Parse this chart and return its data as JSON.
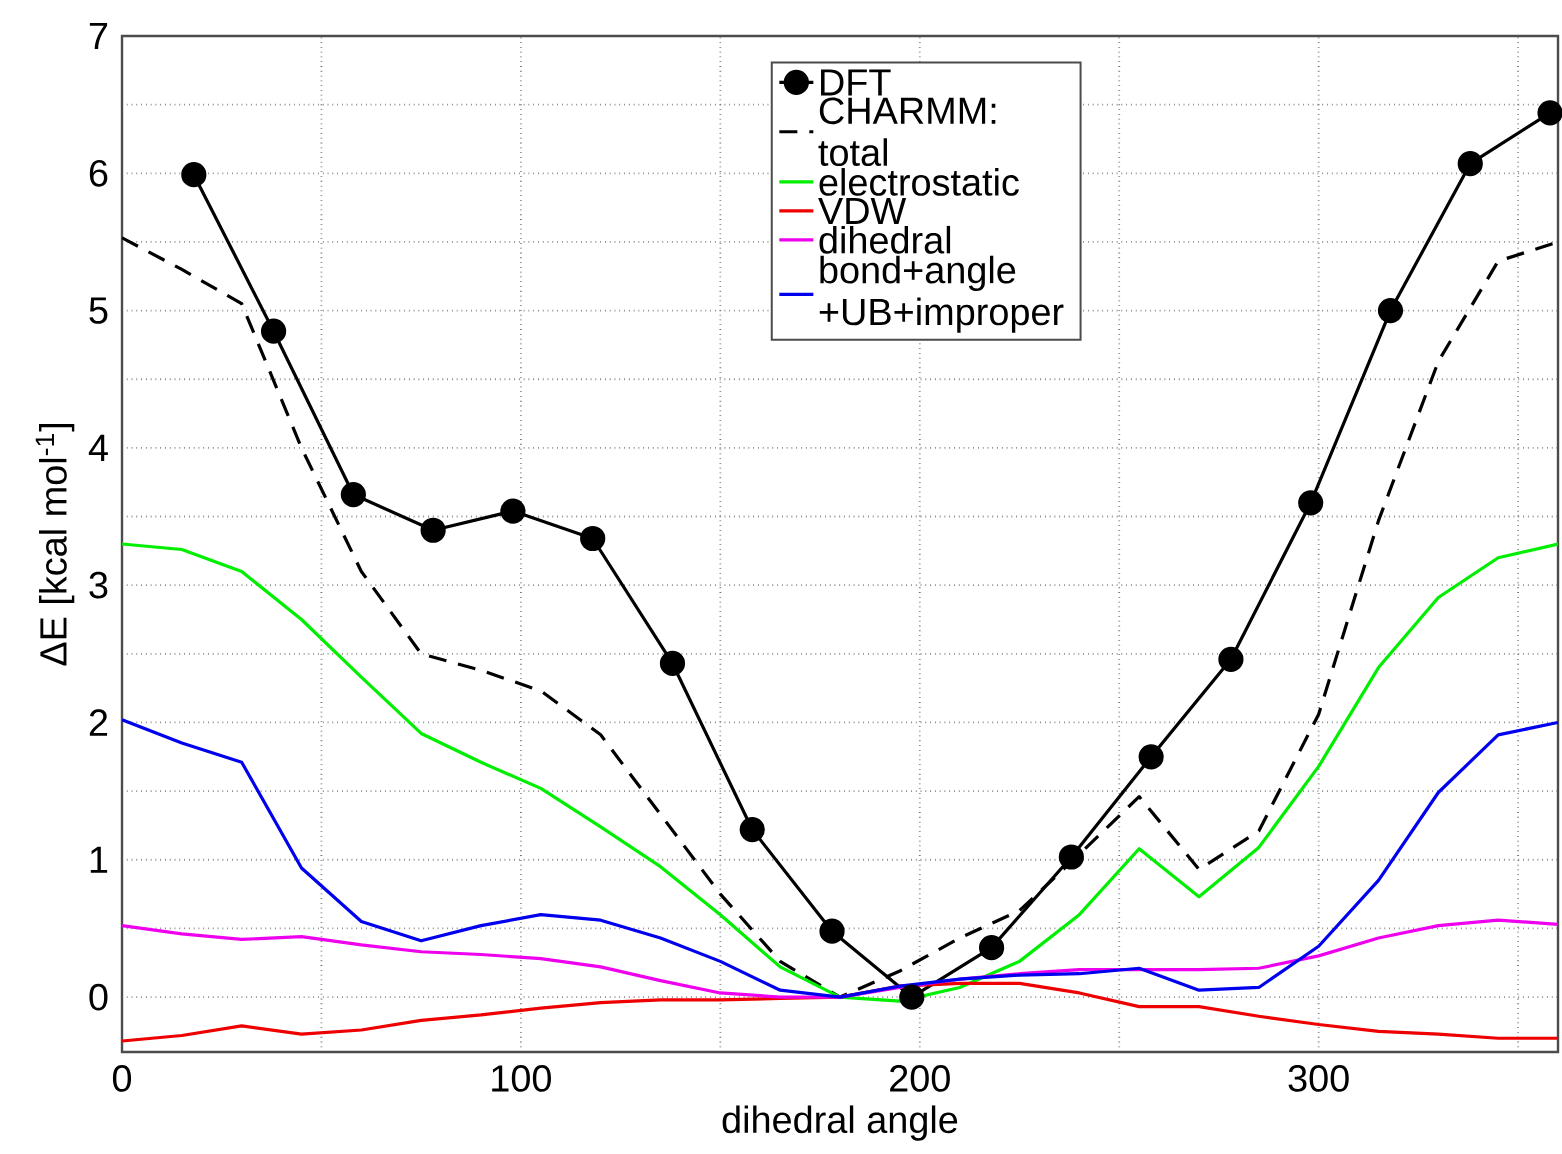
{
  "chart_data": {
    "type": "line",
    "xlabel": "dihedral angle",
    "ylabel": "ΔE [kcal mol$^{-1}$]",
    "xlim": [
      0,
      360
    ],
    "ylim": [
      -0.4,
      7
    ],
    "xticks": [
      0,
      {
        "value": 50,
        "label": null
      },
      100,
      {
        "value": 150,
        "label": null
      },
      200,
      {
        "value": 250,
        "label": null
      },
      300,
      {
        "value": 350,
        "label": null
      }
    ],
    "yticks": [
      0,
      {
        "value": 0.5,
        "label": null
      },
      1,
      {
        "value": 1.5,
        "label": null
      },
      2,
      {
        "value": 2.5,
        "label": null
      },
      3,
      {
        "value": 3.5,
        "label": null
      },
      4,
      {
        "value": 4.5,
        "label": null
      },
      5,
      {
        "value": 5.5,
        "label": null
      },
      6,
      {
        "value": 6.5,
        "label": null
      },
      7
    ],
    "grid": true,
    "legend": "top",
    "series": [
      {
        "name": "DFT",
        "color": "#000000",
        "marker": "circle",
        "line_style": "solid",
        "x": [
          18,
          38,
          58,
          78,
          98,
          118,
          138,
          158,
          178,
          198,
          218,
          238,
          258,
          278,
          298,
          318,
          338,
          358
        ],
        "values": [
          5.99,
          4.85,
          3.66,
          3.4,
          3.54,
          3.34,
          2.43,
          1.22,
          0.48,
          0,
          0.36,
          1.02,
          1.75,
          2.46,
          3.6,
          5.0,
          6.07,
          6.44
        ]
      },
      {
        "name": "CHARMM: total",
        "color": "#000000",
        "marker": "none",
        "line_style": "dashed",
        "x": [
          0,
          15,
          30,
          45,
          60,
          75,
          90,
          105,
          120,
          135,
          150,
          165,
          180,
          195,
          210,
          225,
          240,
          255,
          270,
          285,
          300,
          315,
          330,
          345,
          360
        ],
        "values": [
          5.53,
          5.3,
          5.05,
          4.0,
          3.1,
          2.5,
          2.38,
          2.23,
          1.91,
          1.33,
          0.75,
          0.26,
          0,
          0.19,
          0.43,
          0.63,
          1.04,
          1.46,
          0.93,
          1.21,
          2.06,
          3.47,
          4.63,
          5.36,
          5.5
        ]
      },
      {
        "name": "electrostatic",
        "color": "#00ee00",
        "marker": "none",
        "line_style": "solid",
        "x": [
          0,
          15,
          30,
          45,
          60,
          75,
          90,
          105,
          120,
          135,
          150,
          165,
          180,
          195,
          210,
          225,
          240,
          255,
          270,
          285,
          300,
          315,
          330,
          345,
          360
        ],
        "values": [
          3.3,
          3.26,
          3.1,
          2.75,
          2.33,
          1.92,
          1.71,
          1.52,
          1.24,
          0.95,
          0.6,
          0.22,
          0,
          -0.03,
          0.07,
          0.26,
          0.6,
          1.08,
          0.73,
          1.09,
          1.68,
          2.4,
          2.91,
          3.2,
          3.3
        ]
      },
      {
        "name": "VDW",
        "color": "#ee0000",
        "marker": "none",
        "line_style": "solid",
        "x": [
          0,
          15,
          30,
          45,
          60,
          75,
          90,
          105,
          120,
          135,
          150,
          165,
          180,
          195,
          210,
          225,
          240,
          255,
          270,
          285,
          300,
          315,
          330,
          345,
          360
        ],
        "values": [
          -0.32,
          -0.28,
          -0.21,
          -0.27,
          -0.24,
          -0.17,
          -0.13,
          -0.08,
          -0.04,
          -0.02,
          -0.02,
          -0.01,
          0,
          0.08,
          0.1,
          0.1,
          0.03,
          -0.07,
          -0.07,
          -0.14,
          -0.2,
          -0.25,
          -0.27,
          -0.3,
          -0.3
        ]
      },
      {
        "name": "dihedral",
        "color": "#ee00ee",
        "marker": "none",
        "line_style": "solid",
        "x": [
          0,
          15,
          30,
          45,
          60,
          75,
          90,
          105,
          120,
          135,
          150,
          165,
          180,
          195,
          210,
          225,
          240,
          255,
          270,
          285,
          300,
          315,
          330,
          345,
          360
        ],
        "values": [
          0.52,
          0.46,
          0.42,
          0.44,
          0.38,
          0.33,
          0.31,
          0.28,
          0.22,
          0.12,
          0.03,
          0,
          0,
          0.07,
          0.13,
          0.17,
          0.2,
          0.2,
          0.2,
          0.21,
          0.3,
          0.43,
          0.52,
          0.56,
          0.53
        ]
      },
      {
        "name": "bond+angle +UB+improper",
        "color": "#0000ee",
        "marker": "none",
        "line_style": "solid",
        "x": [
          0,
          15,
          30,
          45,
          60,
          75,
          90,
          105,
          120,
          135,
          150,
          165,
          180,
          195,
          210,
          225,
          240,
          255,
          270,
          285,
          300,
          315,
          330,
          345,
          360
        ],
        "values": [
          2.02,
          1.85,
          1.71,
          0.94,
          0.55,
          0.41,
          0.52,
          0.6,
          0.56,
          0.43,
          0.26,
          0.05,
          0,
          0.08,
          0.13,
          0.16,
          0.17,
          0.21,
          0.05,
          0.07,
          0.37,
          0.85,
          1.49,
          1.91,
          2.0
        ]
      }
    ]
  }
}
